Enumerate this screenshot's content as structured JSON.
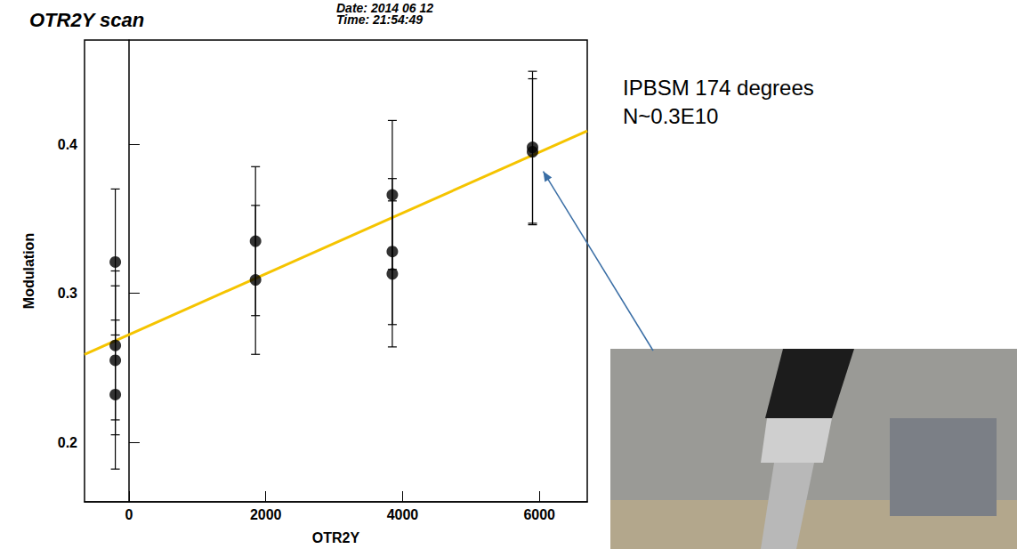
{
  "chart_data": {
    "type": "scatter",
    "title": "OTR2Y scan",
    "date": "Date: 2014 06 12",
    "time": "Time: 21:54:49",
    "annotations": [
      "IPBSM 174 degrees",
      "N~0.3E10"
    ],
    "x_label": "OTR2Y",
    "y_label": "Modulation",
    "x": [
      -200,
      -200,
      -200,
      -200,
      1850,
      1850,
      3850,
      3850,
      3850,
      5900,
      5900
    ],
    "values": [
      0.321,
      0.265,
      0.255,
      0.232,
      0.335,
      0.309,
      0.366,
      0.328,
      0.313,
      0.398,
      0.395
    ],
    "errors": [
      0.049,
      0.05,
      0.05,
      0.05,
      0.05,
      0.05,
      0.05,
      0.049,
      0.049,
      0.051,
      0.049
    ],
    "color": "#000000",
    "marker": "circle",
    "fit": {
      "type": "line",
      "x": [
        -650,
        6700
      ],
      "values": [
        0.259,
        0.409
      ],
      "color": "#f5c400"
    },
    "xlim": [
      -650,
      6700
    ],
    "xticks": [
      0,
      2000,
      4000,
      6000
    ],
    "ylim": [
      0.16,
      0.47
    ],
    "yticks": [
      0.2,
      0.3,
      0.4
    ],
    "grid": false
  }
}
